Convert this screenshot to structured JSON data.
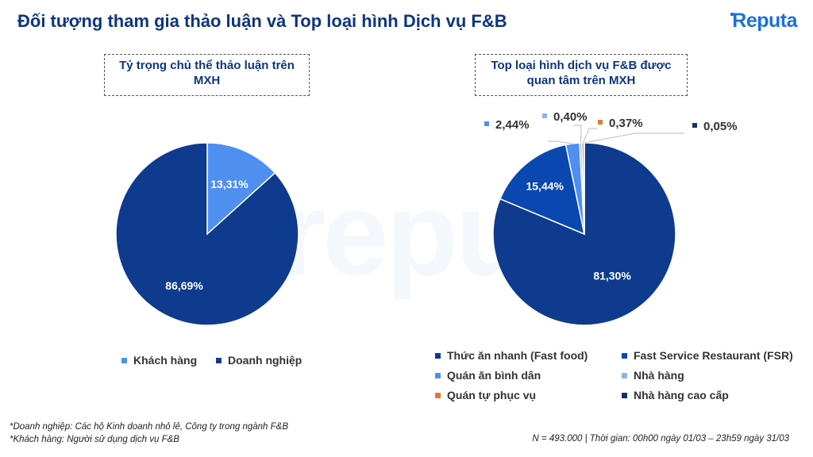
{
  "header": {
    "title": "Đối tượng tham gia thảo luận và Top loại hình Dịch vụ F&B",
    "logo_text": "Reputa",
    "watermark": "reputa"
  },
  "colors": {
    "dark_blue": "#0e3b8e",
    "mid_blue": "#0a47b0",
    "light_blue": "#4f8ff0",
    "pale_blue": "#8fb3e8",
    "orange": "#e07b39",
    "navy": "#13306b"
  },
  "chart_data": [
    {
      "type": "pie",
      "title": "Tỷ trọng chủ thể thảo luận trên MXH",
      "slices": [
        {
          "name": "Khách hàng",
          "value": 13.31,
          "label": "13,31%",
          "color": "#4f8ff0"
        },
        {
          "name": "Doanh nghiệp",
          "value": 86.69,
          "label": "86,69%",
          "color": "#0e3b8e"
        }
      ],
      "legend": [
        "Khách hàng",
        "Doanh nghiệp"
      ],
      "legend_position": "bottom"
    },
    {
      "type": "pie",
      "title": "Top loại hình dịch vụ F&B được quan tâm trên MXH",
      "slices": [
        {
          "name": "Thức ăn nhanh (Fast food)",
          "value": 81.3,
          "label": "81,30%",
          "color": "#0e3b8e"
        },
        {
          "name": "Fast Service Restaurant (FSR)",
          "value": 15.44,
          "label": "15,44%",
          "color": "#0a47b0"
        },
        {
          "name": "Quán ăn bình dân",
          "value": 2.44,
          "label": "2,44%",
          "color": "#4f8ff0"
        },
        {
          "name": "Nhà hàng",
          "value": 0.4,
          "label": "0,40%",
          "color": "#8fb3e8"
        },
        {
          "name": "Quán tự phục vụ",
          "value": 0.37,
          "label": "0,37%",
          "color": "#e07b39"
        },
        {
          "name": "Nhà hàng cao cấp",
          "value": 0.05,
          "label": "0,05%",
          "color": "#13306b"
        }
      ],
      "legend": [
        "Thức ăn nhanh (Fast food)",
        "Fast Service Restaurant (FSR)",
        "Quán ăn bình dân",
        "Nhà hàng",
        "Quán tự phục vụ",
        "Nhà hàng cao cấp"
      ],
      "legend_position": "bottom"
    }
  ],
  "footer": {
    "note1": "*Doanh nghiệp: Các hộ Kinh doanh nhỏ lẻ, Công ty trong ngành F&B",
    "note2": "*Khách hàng: Người sử dụng dịch vụ F&B",
    "source": "N = 493.000 | Thời gian: 00h00 ngày 01/03 – 23h59 ngày 31/03"
  }
}
